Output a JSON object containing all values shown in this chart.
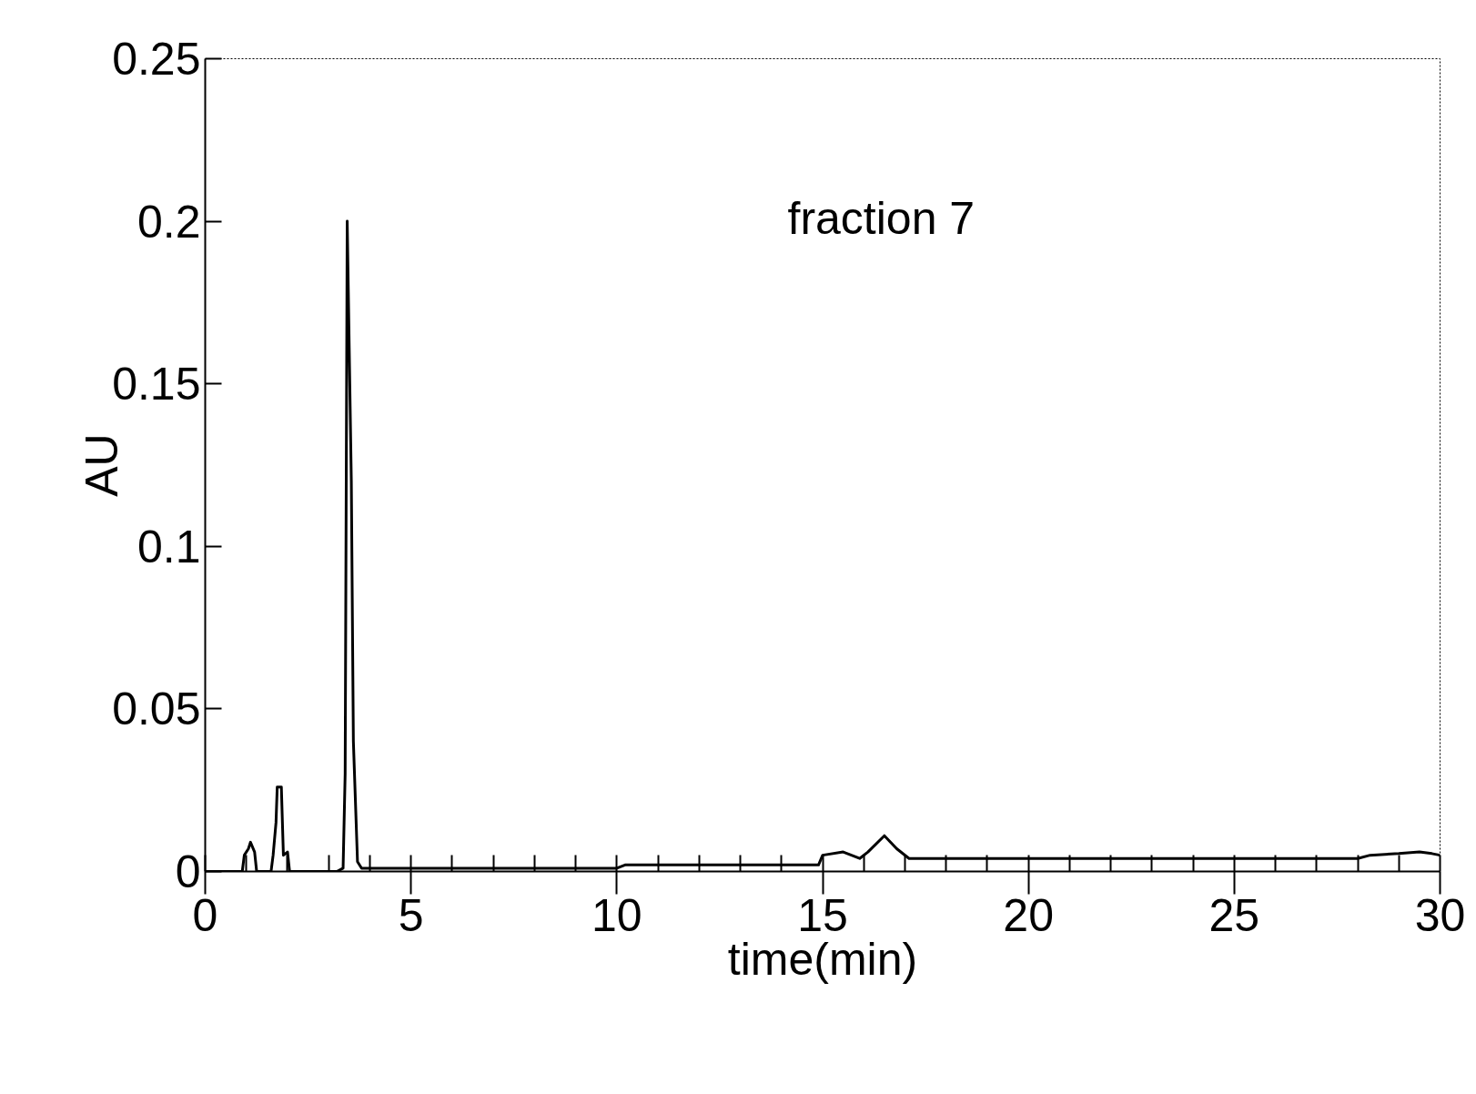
{
  "chart_data": {
    "type": "line",
    "xlabel": "time(min)",
    "ylabel": "AU",
    "annotations": [
      "fraction 7"
    ],
    "x": [
      0,
      0.9,
      0.95,
      1.05,
      1.1,
      1.2,
      1.25,
      1.6,
      1.65,
      1.72,
      1.75,
      1.85,
      1.9,
      2.0,
      2.05,
      3.2,
      3.35,
      3.4,
      3.45,
      3.55,
      3.6,
      3.7,
      3.8,
      10,
      10.2,
      14.9,
      15.0,
      15.5,
      15.9,
      16.1,
      16.5,
      16.8,
      17.1,
      20,
      25,
      28,
      28.3,
      29,
      29.5,
      29.8,
      30
    ],
    "series": [
      {
        "color": "#000000",
        "values": [
          0,
          0,
          0.005,
          0.007,
          0.009,
          0.006,
          0,
          0,
          0.005,
          0.015,
          0.026,
          0.026,
          0.005,
          0.006,
          0,
          0,
          0.001,
          0.03,
          0.2,
          0.12,
          0.04,
          0.003,
          0.001,
          0.001,
          0.002,
          0.002,
          0.005,
          0.006,
          0.004,
          0.006,
          0.011,
          0.007,
          0.004,
          0.004,
          0.004,
          0.004,
          0.005,
          0.0055,
          0.006,
          0.0055,
          0.005
        ]
      }
    ],
    "xlim": [
      0,
      30
    ],
    "ylim": [
      0,
      0.25
    ],
    "xticks": [
      0,
      5,
      10,
      15,
      20,
      25,
      30
    ],
    "yticks": [
      0,
      0.05,
      0.1,
      0.15,
      0.2,
      0.25
    ],
    "grid": false,
    "marker": "none",
    "line_style": "solid"
  }
}
